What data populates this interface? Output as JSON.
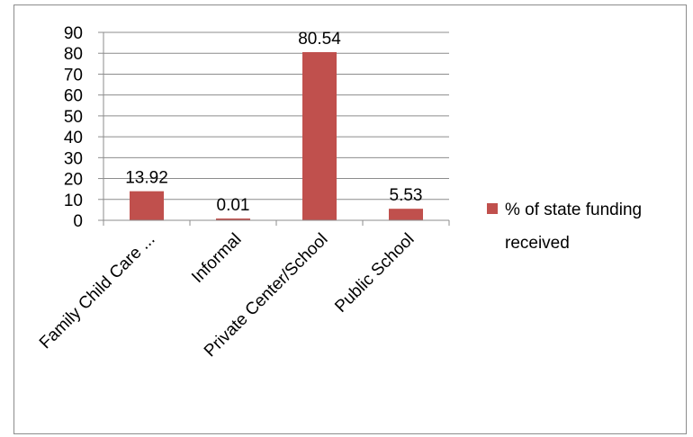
{
  "chart_data": {
    "type": "bar",
    "categories": [
      "Family Child Care ...",
      "Informal",
      "Private Center/School",
      "Public School"
    ],
    "series": [
      {
        "name": "% of state funding received",
        "values": [
          13.92,
          0.01,
          80.54,
          5.53
        ],
        "data_labels": [
          "13.92",
          "0.01",
          "80.54",
          "5.53"
        ],
        "color": "#c0504d"
      }
    ],
    "ylim": [
      0,
      90
    ],
    "yticks": [
      "0",
      "10",
      "20",
      "30",
      "40",
      "50",
      "60",
      "70",
      "80",
      "90"
    ],
    "title": "",
    "xlabel": "",
    "ylabel": "",
    "grid": true,
    "legend_position": "right",
    "legend_lines": [
      "% of state funding",
      "received"
    ]
  }
}
